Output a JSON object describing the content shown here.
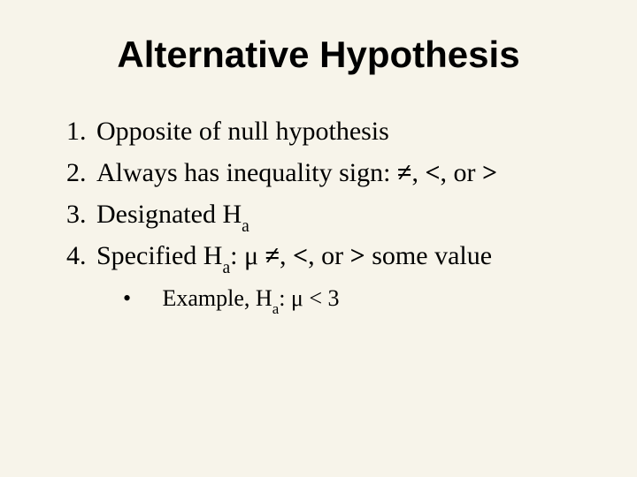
{
  "background_color": "#f7f4ea",
  "text_color": "#000000",
  "title": {
    "text": "Alternative Hypothesis",
    "font_family": "Arial",
    "font_weight": "bold",
    "font_size_pt": 32
  },
  "body_font": {
    "family": "Times New Roman",
    "size_pt": 22
  },
  "list": {
    "type": "ordered",
    "items": [
      {
        "text": "Opposite of null hypothesis"
      },
      {
        "text": "Always has inequality sign: ≠, <, or >",
        "symbols": [
          "≠",
          "<",
          ">"
        ]
      },
      {
        "text": "Designated H_a",
        "subscript": "a"
      },
      {
        "text": "Specified H_a: μ ≠, <, or > some value",
        "greek": "μ",
        "subscript": "a",
        "symbols": [
          "≠",
          "<",
          ">"
        ],
        "sub_items": [
          {
            "bullet": "•",
            "text": "Example, H_a: μ < 3",
            "greek": "μ",
            "subscript": "a",
            "operator": "<",
            "value": 3
          }
        ]
      }
    ]
  }
}
